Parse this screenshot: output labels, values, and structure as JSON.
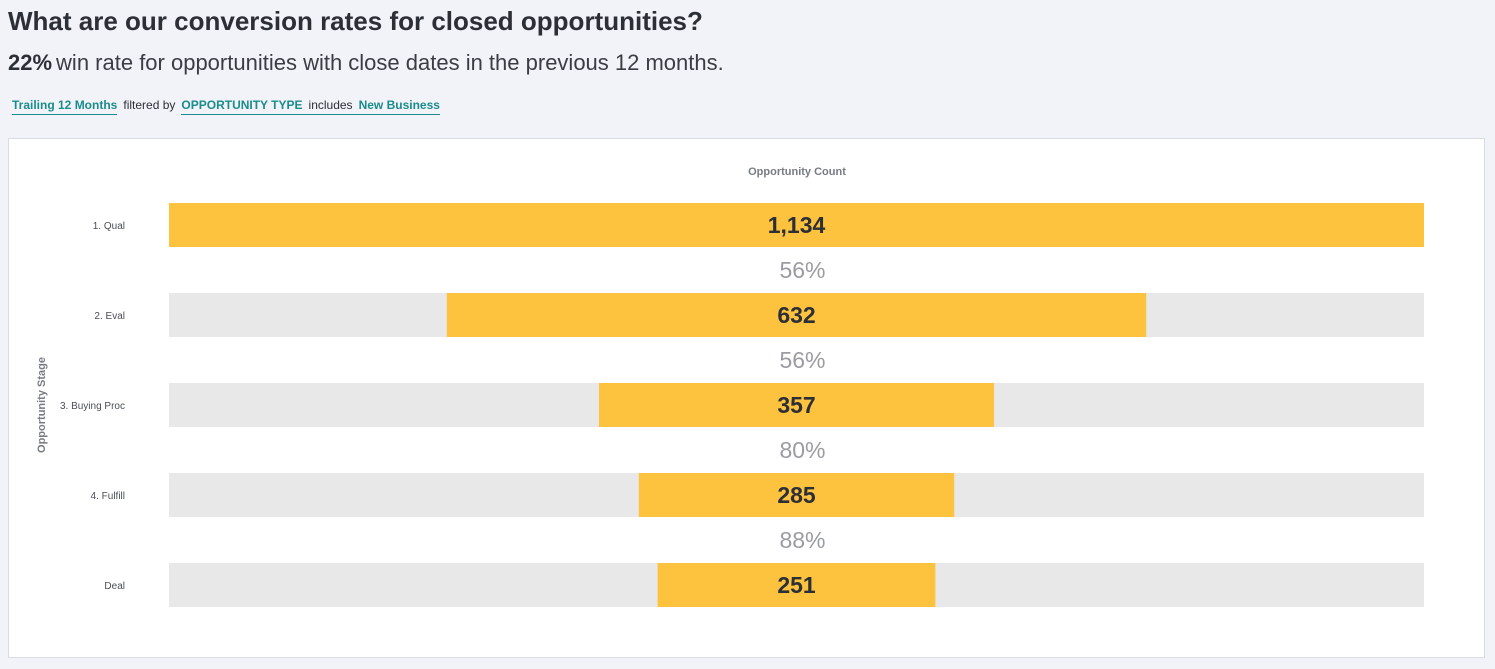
{
  "header": {
    "title": "What are our conversion rates for closed opportunities?",
    "win_rate": "22%",
    "subtitle_rest": "win rate for opportunities with close dates in the previous 12 months."
  },
  "filters": {
    "period": "Trailing 12 Months",
    "filtered_by": "filtered by",
    "field": "OPPORTUNITY TYPE",
    "operator": "includes",
    "value": "New Business"
  },
  "colors": {
    "bar": "#fdc23e",
    "track": "#e8e8e8",
    "accent": "#1a8c8c"
  },
  "chart_data": {
    "type": "bar",
    "orientation": "horizontal-funnel",
    "xlabel": "Opportunity Count",
    "ylabel": "Opportunity Stage",
    "categories": [
      "1. Qual",
      "2. Eval",
      "3. Buying Proc",
      "4. Fulfill",
      "Deal"
    ],
    "values": [
      1134,
      632,
      357,
      285,
      251
    ],
    "value_labels": [
      "1,134",
      "632",
      "357",
      "285",
      "251"
    ],
    "conversion_rates": [
      "56%",
      "56%",
      "80%",
      "88%"
    ],
    "xlim": [
      0,
      1134
    ],
    "grid": false,
    "legend": "none"
  }
}
